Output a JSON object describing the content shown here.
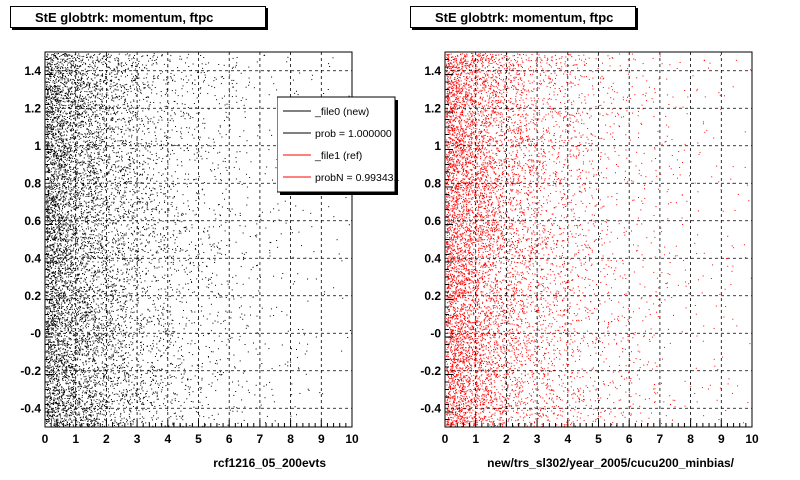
{
  "chart_data": [
    {
      "type": "scatter",
      "title": "StE globtrk: momentum, ftpc",
      "xlabel": "rcf1216_05_200evts",
      "ylabel": "",
      "xlim": [
        0,
        10
      ],
      "ylim": [
        -0.5,
        1.5
      ],
      "x_ticks": [
        "0",
        "1",
        "2",
        "3",
        "4",
        "5",
        "6",
        "7",
        "8",
        "9",
        "10"
      ],
      "y_ticks": [
        "-0.4",
        "-0.2",
        "-0",
        "0.2",
        "0.4",
        "0.6",
        "0.8",
        "1",
        "1.2",
        "1.4"
      ],
      "grid": true,
      "marker_color": "#000000",
      "density_note": "dense at low x, decreasing with x",
      "legend": {
        "placement": "top-right",
        "entries": [
          {
            "label": "_file0 (new)",
            "color": "#000000"
          },
          {
            "label": "prob = 1.000000",
            "color": "#000000"
          },
          {
            "label": "_file1 (ref)",
            "color": "#ff0000"
          },
          {
            "label": "probN = 0.993431",
            "color": "#ff0000"
          }
        ]
      }
    },
    {
      "type": "scatter",
      "title": "StE globtrk: momentum, ftpc",
      "xlabel": "new/trs_sl302/year_2005/cucu200_minbias/",
      "ylabel": "",
      "xlim": [
        0,
        10
      ],
      "ylim": [
        -0.5,
        1.5
      ],
      "x_ticks": [
        "0",
        "1",
        "2",
        "3",
        "4",
        "5",
        "6",
        "7",
        "8",
        "9",
        "10"
      ],
      "y_ticks": [
        "-0.4",
        "-0.2",
        "-0",
        "0.2",
        "0.4",
        "0.6",
        "0.8",
        "1",
        "1.2",
        "1.4"
      ],
      "grid": true,
      "marker_color": "#ff0000",
      "density_note": "dense at low x, decreasing with x"
    }
  ]
}
